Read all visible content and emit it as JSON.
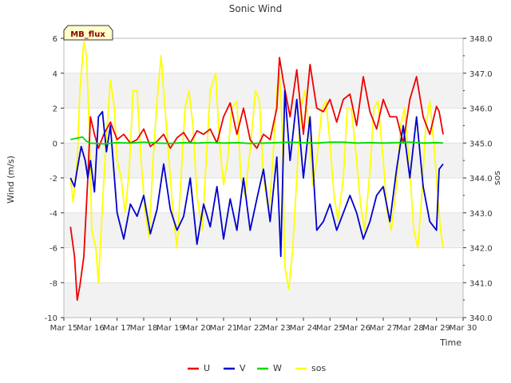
{
  "chart_data": {
    "type": "line",
    "title": "Sonic Wind",
    "badge": "MB_flux",
    "xlabel": "Time",
    "ylabel": "Wind (m/s)",
    "ylabel2": "sos",
    "ylim": [
      -10,
      6
    ],
    "ylim2": [
      340.0,
      348.0
    ],
    "xlim": [
      15,
      30
    ],
    "x_ticks": [
      "Mar 15",
      "Mar 16",
      "Mar 17",
      "Mar 18",
      "Mar 19",
      "Mar 20",
      "Mar 21",
      "Mar 22",
      "Mar 23",
      "Mar 24",
      "Mar 25",
      "Mar 26",
      "Mar 27",
      "Mar 28",
      "Mar 29",
      "Mar 30"
    ],
    "y_ticks": [
      -10,
      -8,
      -6,
      -4,
      -2,
      0,
      2,
      4,
      6
    ],
    "y2_ticks": [
      "340.0",
      "341.0",
      "342.0",
      "343.0",
      "344.0",
      "345.0",
      "346.0",
      "347.0",
      "348.0"
    ],
    "legend_position": "bottom-center",
    "grid": true,
    "series": [
      {
        "name": "U",
        "axis": "left",
        "color": "#ee0000",
        "x": [
          15.25,
          15.4,
          15.5,
          15.6,
          15.75,
          15.9,
          16.0,
          16.15,
          16.3,
          16.5,
          16.75,
          17.0,
          17.25,
          17.5,
          17.75,
          18.0,
          18.25,
          18.5,
          18.75,
          19.0,
          19.25,
          19.5,
          19.75,
          20.0,
          20.25,
          20.5,
          20.75,
          21.0,
          21.25,
          21.5,
          21.75,
          22.0,
          22.25,
          22.5,
          22.75,
          23.0,
          23.1,
          23.25,
          23.5,
          23.75,
          24.0,
          24.25,
          24.5,
          24.75,
          25.0,
          25.25,
          25.5,
          25.75,
          26.0,
          26.25,
          26.5,
          26.75,
          27.0,
          27.25,
          27.5,
          27.75,
          28.0,
          28.25,
          28.5,
          28.75,
          29.0,
          29.1,
          29.25
        ],
        "y": [
          -4.8,
          -6.5,
          -9.0,
          -8.2,
          -6.5,
          -2.0,
          1.5,
          0.5,
          -0.3,
          0.5,
          1.2,
          0.2,
          0.5,
          0.0,
          0.2,
          0.8,
          -0.2,
          0.1,
          0.5,
          -0.3,
          0.3,
          0.6,
          0.0,
          0.7,
          0.5,
          0.8,
          0.0,
          1.5,
          2.3,
          0.5,
          2.0,
          0.2,
          -0.3,
          0.5,
          0.2,
          2.0,
          4.9,
          3.5,
          1.5,
          4.2,
          0.5,
          4.5,
          2.0,
          1.8,
          2.5,
          1.2,
          2.5,
          2.8,
          1.0,
          3.8,
          1.8,
          0.8,
          2.5,
          1.5,
          1.5,
          0.0,
          2.5,
          3.8,
          1.5,
          0.5,
          2.1,
          1.8,
          0.5
        ]
      },
      {
        "name": "V",
        "axis": "left",
        "color": "#0000cc",
        "x": [
          15.25,
          15.4,
          15.5,
          15.65,
          15.8,
          15.9,
          16.0,
          16.15,
          16.3,
          16.45,
          16.6,
          16.75,
          16.9,
          17.0,
          17.25,
          17.5,
          17.75,
          18.0,
          18.25,
          18.5,
          18.75,
          19.0,
          19.25,
          19.5,
          19.75,
          20.0,
          20.25,
          20.5,
          20.75,
          21.0,
          21.25,
          21.5,
          21.75,
          22.0,
          22.25,
          22.5,
          22.75,
          23.0,
          23.15,
          23.3,
          23.5,
          23.75,
          24.0,
          24.25,
          24.5,
          24.75,
          25.0,
          25.25,
          25.5,
          25.75,
          26.0,
          26.25,
          26.5,
          26.75,
          27.0,
          27.25,
          27.5,
          27.75,
          28.0,
          28.25,
          28.5,
          28.75,
          29.0,
          29.1,
          29.25
        ],
        "y": [
          -2.0,
          -2.5,
          -1.5,
          -0.2,
          -1.0,
          -2.0,
          -1.0,
          -2.8,
          1.5,
          1.8,
          -0.5,
          1.0,
          -2.0,
          -4.0,
          -5.5,
          -3.5,
          -4.2,
          -3.0,
          -5.2,
          -3.8,
          -1.2,
          -3.8,
          -5.0,
          -4.2,
          -2.0,
          -5.8,
          -3.5,
          -4.8,
          -2.5,
          -5.5,
          -3.2,
          -5.0,
          -2.0,
          -5.0,
          -3.2,
          -1.5,
          -4.5,
          -0.8,
          -6.5,
          3.0,
          -1.0,
          2.5,
          -2.0,
          1.5,
          -5.0,
          -4.5,
          -3.5,
          -5.0,
          -4.0,
          -3.0,
          -4.0,
          -5.5,
          -4.5,
          -3.0,
          -2.5,
          -4.5,
          -1.5,
          1.0,
          -2.0,
          1.5,
          -2.5,
          -4.5,
          -5.0,
          -1.5,
          -1.2
        ]
      },
      {
        "name": "W",
        "axis": "left",
        "color": "#00dd00",
        "x": [
          15.25,
          15.4,
          15.55,
          15.7,
          15.85,
          16.0,
          16.5,
          17.0,
          17.5,
          18.0,
          18.5,
          19.0,
          19.5,
          20.0,
          20.5,
          21.0,
          21.5,
          22.0,
          22.5,
          23.0,
          23.5,
          24.0,
          24.5,
          25.0,
          25.5,
          26.0,
          26.5,
          27.0,
          27.5,
          28.0,
          28.5,
          29.0,
          29.25
        ],
        "y": [
          0.2,
          0.25,
          0.3,
          0.35,
          0.1,
          0.0,
          -0.05,
          0.02,
          0.0,
          0.05,
          0.0,
          -0.02,
          0.02,
          0.0,
          0.03,
          0.0,
          0.02,
          -0.02,
          0.0,
          0.02,
          0.05,
          0.02,
          0.0,
          0.05,
          0.05,
          0.0,
          0.02,
          0.0,
          0.02,
          0.05,
          0.0,
          0.02,
          0.0
        ]
      },
      {
        "name": "sos",
        "axis": "right",
        "color": "#ffff00",
        "x": [
          15.25,
          15.35,
          15.5,
          15.6,
          15.75,
          15.85,
          15.95,
          16.05,
          16.2,
          16.3,
          16.45,
          16.6,
          16.75,
          16.9,
          17.0,
          17.15,
          17.3,
          17.45,
          17.6,
          17.75,
          17.9,
          18.05,
          18.2,
          18.35,
          18.5,
          18.65,
          18.8,
          18.95,
          19.1,
          19.25,
          19.4,
          19.55,
          19.7,
          19.85,
          20.0,
          20.2,
          20.35,
          20.5,
          20.7,
          20.85,
          21.0,
          21.15,
          21.3,
          21.5,
          21.65,
          21.8,
          22.0,
          22.2,
          22.35,
          22.5,
          22.7,
          22.85,
          23.0,
          23.1,
          23.2,
          23.3,
          23.45,
          23.6,
          23.75,
          23.9,
          24.05,
          24.2,
          24.35,
          24.5,
          24.7,
          24.85,
          25.0,
          25.15,
          25.3,
          25.5,
          25.65,
          25.8,
          26.0,
          26.15,
          26.3,
          26.5,
          26.65,
          26.8,
          27.0,
          27.15,
          27.3,
          27.5,
          27.65,
          27.8,
          28.0,
          28.15,
          28.3,
          28.45,
          28.6,
          28.75,
          28.9,
          29.05,
          29.15,
          29.25
        ],
        "y": [
          344.0,
          343.3,
          344.5,
          346.5,
          347.9,
          347.5,
          345.5,
          342.5,
          342.0,
          341.0,
          343.2,
          345.2,
          346.8,
          346.0,
          344.5,
          344.0,
          343.0,
          344.2,
          346.5,
          346.5,
          344.5,
          343.0,
          342.3,
          344.5,
          346.2,
          347.5,
          346.0,
          344.5,
          343.0,
          342.0,
          344.0,
          346.0,
          346.5,
          345.5,
          343.5,
          342.5,
          344.5,
          346.5,
          347.0,
          345.0,
          343.8,
          344.5,
          346.0,
          346.2,
          344.0,
          343.5,
          344.8,
          346.5,
          346.2,
          344.0,
          343.0,
          344.5,
          346.5,
          347.0,
          345.5,
          341.5,
          340.8,
          342.0,
          344.0,
          346.0,
          346.5,
          345.5,
          343.8,
          344.5,
          346.0,
          346.2,
          345.0,
          343.5,
          342.8,
          344.0,
          346.0,
          346.0,
          344.5,
          343.2,
          342.5,
          344.2,
          346.0,
          346.2,
          344.5,
          343.0,
          342.5,
          343.8,
          345.5,
          346.0,
          344.2,
          342.5,
          342.0,
          343.5,
          345.5,
          346.2,
          345.0,
          343.5,
          342.5,
          342.0
        ]
      }
    ]
  }
}
